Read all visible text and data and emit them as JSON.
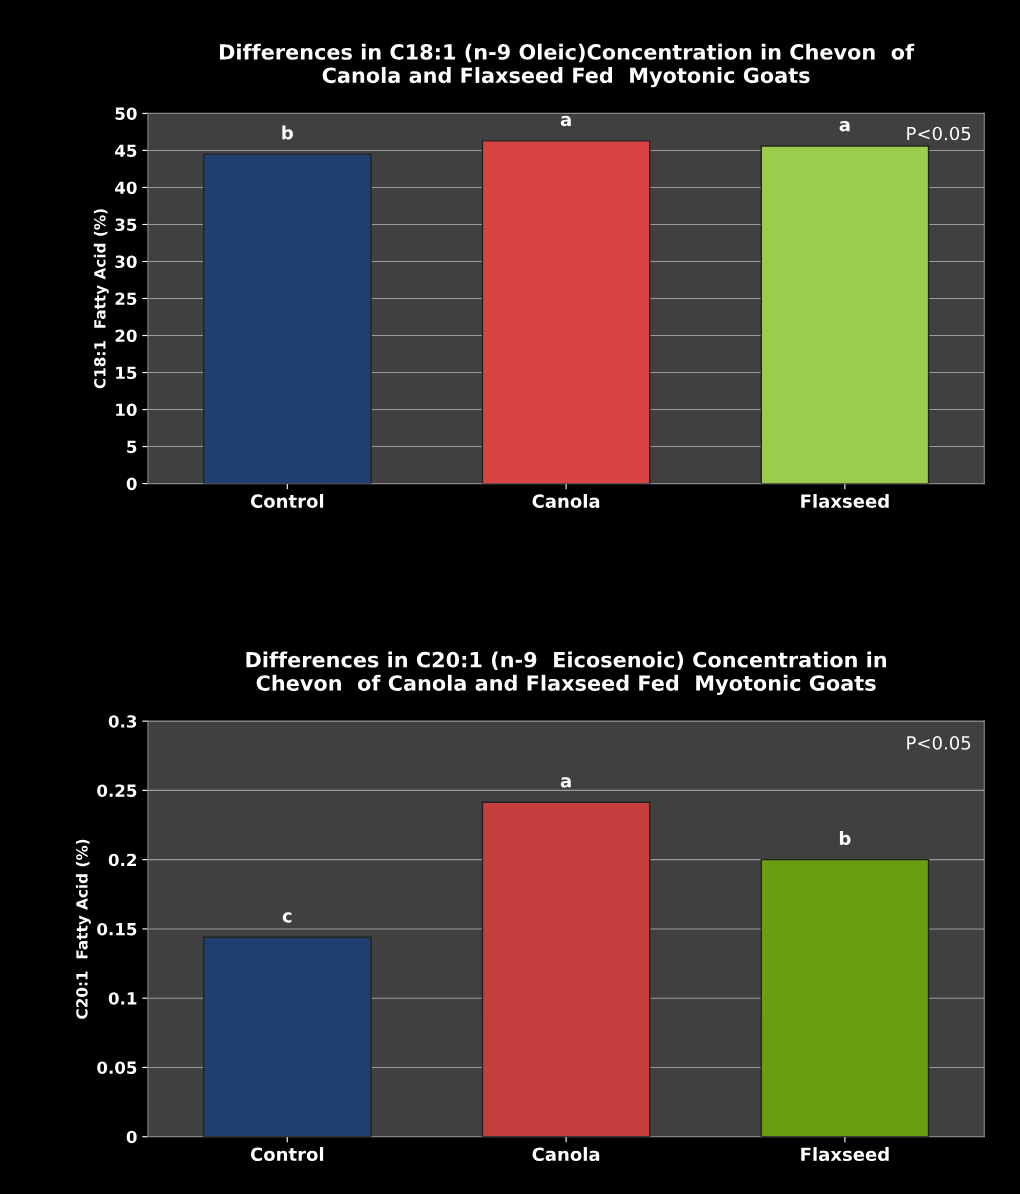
{
  "chart_data": [
    {
      "type": "bar",
      "title": "Differences in C18:1 (n-9 Oleic)Concentration in Chevon  of\nCanola and Flaxseed Fed  Myotonic Goats",
      "ylabel": "C18:1  Fatty Acid (%)",
      "categories": [
        "Control",
        "Canola",
        "Flaxseed"
      ],
      "values": [
        44.5,
        46.3,
        45.6
      ],
      "colors": [
        "#1f3f6e",
        "#d84444",
        "#9ccc4c"
      ],
      "ylim": [
        0,
        50
      ],
      "yticks": [
        0,
        5,
        10,
        15,
        20,
        25,
        30,
        35,
        40,
        45,
        50
      ],
      "grid": "y",
      "annotations": [
        {
          "text": "b",
          "x": "Control",
          "y": 44.5
        },
        {
          "text": "a",
          "x": "Canola",
          "y": 46.3
        },
        {
          "text": "a",
          "x": "Flaxseed",
          "y": 45.6
        },
        "P<0.05"
      ]
    },
    {
      "type": "bar",
      "title": "Differences in C20:1 (n-9  Eicosenoic) Concentration in\nChevon  of Canola and Flaxseed Fed  Myotonic Goats",
      "ylabel": "C20:1  Fatty Acid (%)",
      "categories": [
        "Control",
        "Canola",
        "Flaxseed"
      ],
      "values": [
        0.144,
        0.2415,
        0.2
      ],
      "colors": [
        "#1f3f6e",
        "#c43e3e",
        "#6a9e10"
      ],
      "ylim": [
        0,
        0.3
      ],
      "yticks": [
        0,
        0.05,
        0.1,
        0.15,
        0.2,
        0.25,
        0.3
      ],
      "grid": "y",
      "annotations": [
        {
          "text": "c",
          "x": "Control",
          "y": 0.144
        },
        {
          "text": "a",
          "x": "Canola",
          "y": 0.2415
        },
        {
          "text": "b",
          "x": "Flaxseed",
          "y": 0.2
        },
        "P<0.05"
      ]
    }
  ]
}
